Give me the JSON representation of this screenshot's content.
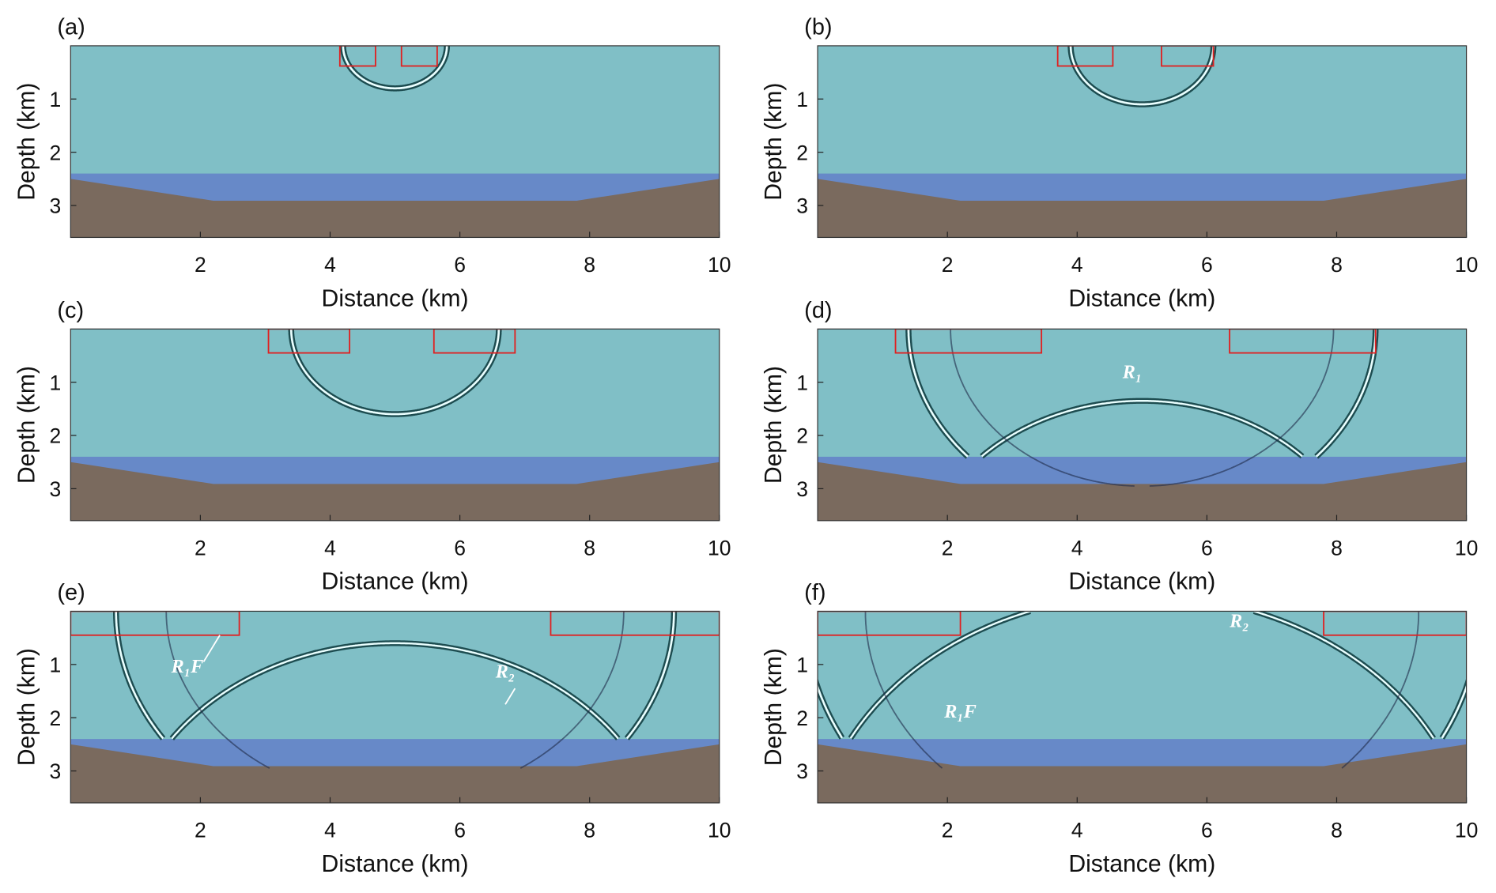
{
  "chart_data": [
    {
      "type": "wavefield",
      "label": "(a)",
      "xlabel": "Distance (km)",
      "ylabel": "Depth (km)",
      "xlim": [
        0,
        10
      ],
      "ylim": [
        0,
        3.6
      ],
      "xticks": [
        2,
        4,
        6,
        8,
        10
      ],
      "yticks": [
        1,
        2,
        3
      ],
      "annotations": []
    },
    {
      "type": "wavefield",
      "label": "(b)",
      "xlabel": "Distance (km)",
      "ylabel": "Depth (km)",
      "xlim": [
        0,
        10
      ],
      "ylim": [
        0,
        3.6
      ],
      "xticks": [
        2,
        4,
        6,
        8,
        10
      ],
      "yticks": [
        1,
        2,
        3
      ],
      "annotations": []
    },
    {
      "type": "wavefield",
      "label": "(c)",
      "xlabel": "Distance (km)",
      "ylabel": "Depth (km)",
      "xlim": [
        0,
        10
      ],
      "ylim": [
        0,
        3.6
      ],
      "xticks": [
        2,
        4,
        6,
        8,
        10
      ],
      "yticks": [
        1,
        2,
        3
      ],
      "annotations": []
    },
    {
      "type": "wavefield",
      "label": "(d)",
      "xlabel": "Distance (km)",
      "ylabel": "Depth (km)",
      "xlim": [
        0,
        10
      ],
      "ylim": [
        0,
        3.6
      ],
      "xticks": [
        2,
        4,
        6,
        8,
        10
      ],
      "yticks": [
        1,
        2,
        3
      ],
      "annotations": [
        "R₁"
      ]
    },
    {
      "type": "wavefield",
      "label": "(e)",
      "xlabel": "Distance (km)",
      "ylabel": "Depth (km)",
      "xlim": [
        0,
        10
      ],
      "ylim": [
        0,
        3.6
      ],
      "xticks": [
        2,
        4,
        6,
        8,
        10
      ],
      "yticks": [
        1,
        2,
        3
      ],
      "annotations": [
        "R₁F",
        "R₂"
      ]
    },
    {
      "type": "wavefield",
      "label": "(f)",
      "xlabel": "Distance (km)",
      "ylabel": "Depth (km)",
      "xlim": [
        0,
        10
      ],
      "ylim": [
        0,
        3.6
      ],
      "xticks": [
        2,
        4,
        6,
        8,
        10
      ],
      "yticks": [
        1,
        2,
        3
      ],
      "annotations": [
        "R₂",
        "R₁F"
      ]
    }
  ]
}
